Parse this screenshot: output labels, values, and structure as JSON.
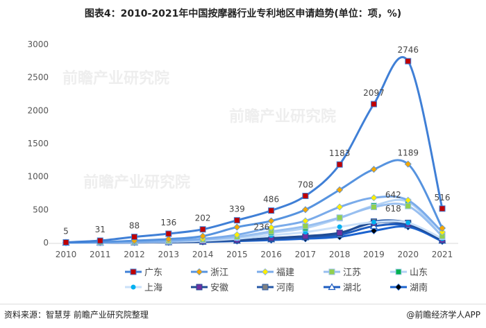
{
  "title": "图表4：2010-2021年中国按摩器行业专利地区申请趋势(单位：项，%)",
  "source": "资料来源：智慧芽 前瞻产业研究院整理",
  "brand": "@前瞻经济学人APP",
  "watermark": "前瞻产业研究院",
  "chart_data": {
    "type": "line",
    "title": "图表4：2010-2021年中国按摩器行业专利地区申请趋势(单位：项，%)",
    "categories": [
      "2010",
      "2011",
      "2012",
      "2013",
      "2014",
      "2015",
      "2016",
      "2017",
      "2018",
      "2019",
      "2020",
      "2021"
    ],
    "ylim": [
      0,
      3000
    ],
    "yticks": [
      "0",
      "500",
      "1000",
      "1500",
      "2000",
      "2500",
      "3000"
    ],
    "grid": false,
    "legend_position": "bottom",
    "series": [
      {
        "name": "广东",
        "values": [
          5,
          31,
          88,
          136,
          202,
          339,
          486,
          708,
          1183,
          2097,
          2746,
          516
        ],
        "line": "#3f7fd6",
        "marker": "square",
        "fill": "#c00000",
        "width": 3
      },
      {
        "name": "浙江",
        "values": [
          2,
          10,
          30,
          55,
          100,
          236,
          330,
          500,
          800,
          1110,
          1189,
          220
        ],
        "line": "#5693df",
        "marker": "diamond",
        "fill": "#f5a800",
        "width": 3
      },
      {
        "name": "福建",
        "values": [
          1,
          5,
          15,
          30,
          60,
          120,
          230,
          330,
          540,
          680,
          642,
          160
        ],
        "line": "#7aabea",
        "marker": "diamond",
        "fill": "#ffee00",
        "width": 3
      },
      {
        "name": "江苏",
        "values": [
          1,
          4,
          12,
          25,
          45,
          90,
          170,
          250,
          380,
          540,
          555,
          100
        ],
        "line": "#98bff0",
        "marker": "square",
        "fill": "#92d050",
        "width": 3
      },
      {
        "name": "山东",
        "values": [
          1,
          3,
          10,
          20,
          40,
          80,
          150,
          220,
          370,
          560,
          618,
          90
        ],
        "line": "#b3d2f5",
        "marker": "square",
        "fill": "#00b050",
        "width": 3
      },
      {
        "name": "上海",
        "values": [
          1,
          3,
          8,
          15,
          30,
          60,
          110,
          160,
          240,
          310,
          300,
          60
        ],
        "line": "#c9e0f9",
        "marker": "circle",
        "fill": "#00b0f0",
        "width": 3
      },
      {
        "name": "安徽",
        "values": [
          0,
          2,
          5,
          10,
          20,
          40,
          70,
          100,
          150,
          300,
          280,
          40
        ],
        "line": "#1f4b94",
        "marker": "square",
        "fill": "#7030a0",
        "width": 3
      },
      {
        "name": "河南",
        "values": [
          0,
          2,
          5,
          10,
          20,
          35,
          60,
          90,
          140,
          320,
          300,
          40
        ],
        "line": "#2557a6",
        "marker": "square",
        "fill": "#808080",
        "width": 3
      },
      {
        "name": "湖北",
        "values": [
          0,
          1,
          4,
          8,
          15,
          30,
          50,
          80,
          120,
          250,
          260,
          30
        ],
        "line": "#1d5cc0",
        "marker": "triangle",
        "fill": "#ffffff",
        "width": 3
      },
      {
        "name": "湖南",
        "values": [
          0,
          1,
          3,
          6,
          12,
          25,
          40,
          60,
          90,
          180,
          240,
          20
        ],
        "line": "#1b63cf",
        "marker": "diamond",
        "fill": "#000000",
        "width": 3
      }
    ],
    "data_labels": [
      {
        "series": "广东",
        "x": "2010",
        "text": "5"
      },
      {
        "series": "广东",
        "x": "2011",
        "text": "31"
      },
      {
        "series": "广东",
        "x": "2012",
        "text": "88"
      },
      {
        "series": "广东",
        "x": "2013",
        "text": "136"
      },
      {
        "series": "广东",
        "x": "2014",
        "text": "202"
      },
      {
        "series": "浙江",
        "x": "2015",
        "text": "236"
      },
      {
        "series": "广东",
        "x": "2015",
        "text": "339"
      },
      {
        "series": "广东",
        "x": "2016",
        "text": "486"
      },
      {
        "series": "广东",
        "x": "2017",
        "text": "708"
      },
      {
        "series": "广东",
        "x": "2018",
        "text": "1183"
      },
      {
        "series": "广东",
        "x": "2019",
        "text": "2097"
      },
      {
        "series": "广东",
        "x": "2020",
        "text": "2746"
      },
      {
        "series": "浙江",
        "x": "2020",
        "text": "1189"
      },
      {
        "series": "福建",
        "x": "2020",
        "text": "642"
      },
      {
        "series": "山东",
        "x": "2020",
        "text": "618"
      },
      {
        "series": "广东",
        "x": "2021",
        "text": "516"
      }
    ]
  }
}
